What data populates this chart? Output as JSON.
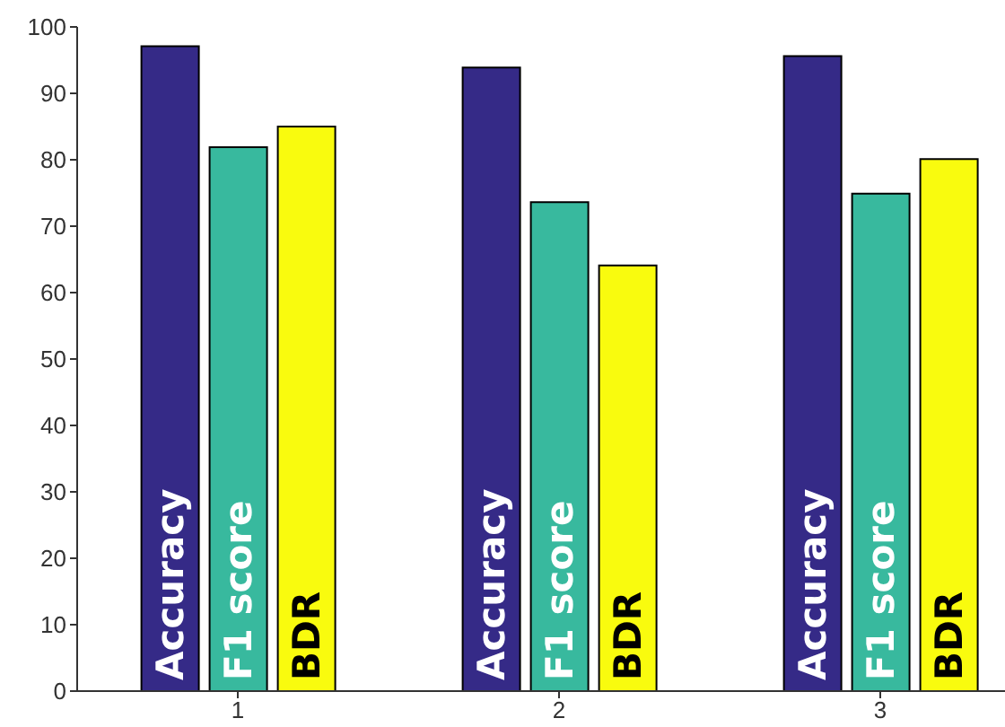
{
  "chart_data": {
    "type": "bar",
    "categories": [
      "1",
      "2",
      "3"
    ],
    "series": [
      {
        "name": "Accuracy",
        "color": "#352a87",
        "values": [
          97.1,
          93.9,
          95.6
        ]
      },
      {
        "name": "F1 score",
        "color": "#38b99e",
        "values": [
          81.9,
          73.6,
          74.9
        ]
      },
      {
        "name": "BDR",
        "color": "#f9fb0e",
        "values": [
          85.0,
          64.1,
          80.1
        ]
      }
    ],
    "ylim": [
      0,
      100
    ],
    "yticks": [
      0,
      10,
      20,
      30,
      40,
      50,
      60,
      70,
      80,
      90,
      100
    ],
    "grid": false,
    "legend": false
  }
}
